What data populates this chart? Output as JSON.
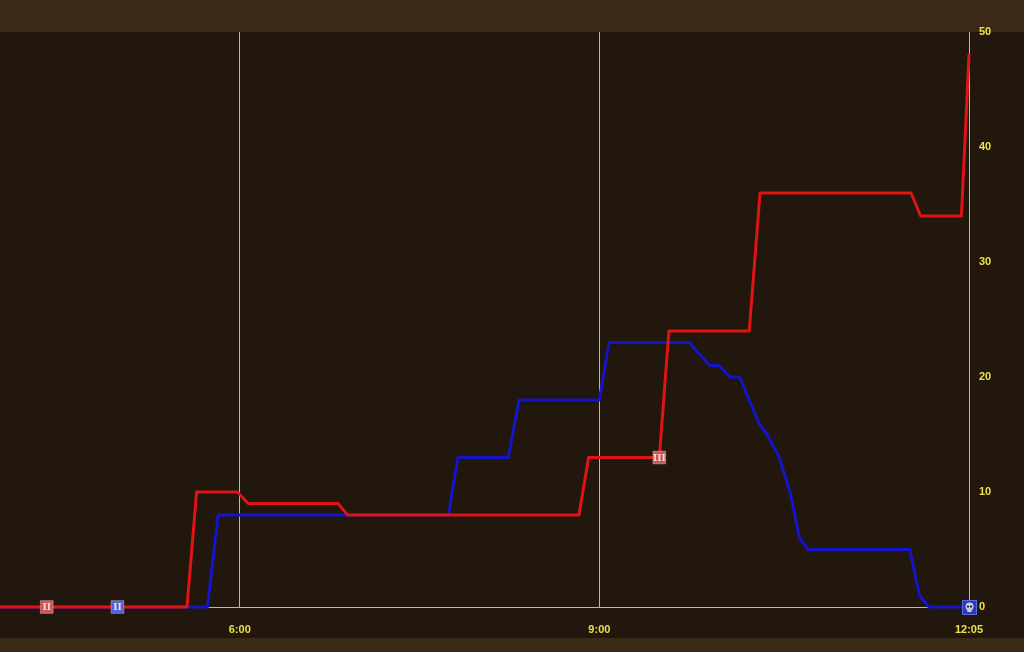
{
  "chart_data": {
    "type": "line",
    "xlim": [
      4,
      12.0833
    ],
    "xticks": [
      {
        "value": 6,
        "label": "6:00"
      },
      {
        "value": 9,
        "label": "9:00"
      },
      {
        "value": 12.0833,
        "label": "12:05"
      }
    ],
    "ylim": [
      0,
      50
    ],
    "yticks": [
      0,
      10,
      20,
      30,
      40,
      50
    ],
    "grid": "x",
    "legend": false,
    "marker": "none",
    "line_style": "solid",
    "series": [
      {
        "color": "#e01414",
        "x": [
          4,
          5.56,
          5.64,
          5.98,
          6.07,
          6.82,
          6.9,
          8.83,
          8.91,
          9.5,
          9.58,
          10.25,
          10.34,
          11.6,
          11.68,
          12.02,
          12.0833
        ],
        "values": [
          0,
          0,
          10,
          10,
          9,
          9,
          8,
          8,
          13,
          13,
          24,
          24,
          36,
          36,
          34,
          34,
          48
        ]
      },
      {
        "color": "#1414c8",
        "x": [
          4,
          5.73,
          5.82,
          7.74,
          7.82,
          8.24,
          8.33,
          9,
          9.08,
          9.75,
          9.92,
          10,
          10.09,
          10.17,
          10.33,
          10.4,
          10.5,
          10.59,
          10.67,
          10.74,
          11.59,
          11.67,
          11.75,
          12.0833
        ],
        "values": [
          0,
          0,
          8,
          8,
          13,
          13,
          18,
          18,
          23,
          23,
          21,
          21,
          20,
          20,
          16,
          15,
          13,
          10,
          6,
          5,
          5,
          1,
          0,
          0
        ]
      },
      {
        "type": "scatter",
        "marker": "square",
        "color": "#c85858",
        "x": [
          4.39,
          9.5
        ],
        "values": [
          0,
          13
        ]
      },
      {
        "type": "scatter",
        "marker": "square",
        "color": "#5262d4",
        "x": [
          4.98
        ],
        "values": [
          0
        ]
      }
    ],
    "annotations": [
      {
        "text": "II",
        "x": 4.39,
        "y": 0
      },
      {
        "text": "II",
        "x": 4.98,
        "y": 0
      },
      {
        "text": "III",
        "x": 9.5,
        "y": 13
      }
    ]
  }
}
